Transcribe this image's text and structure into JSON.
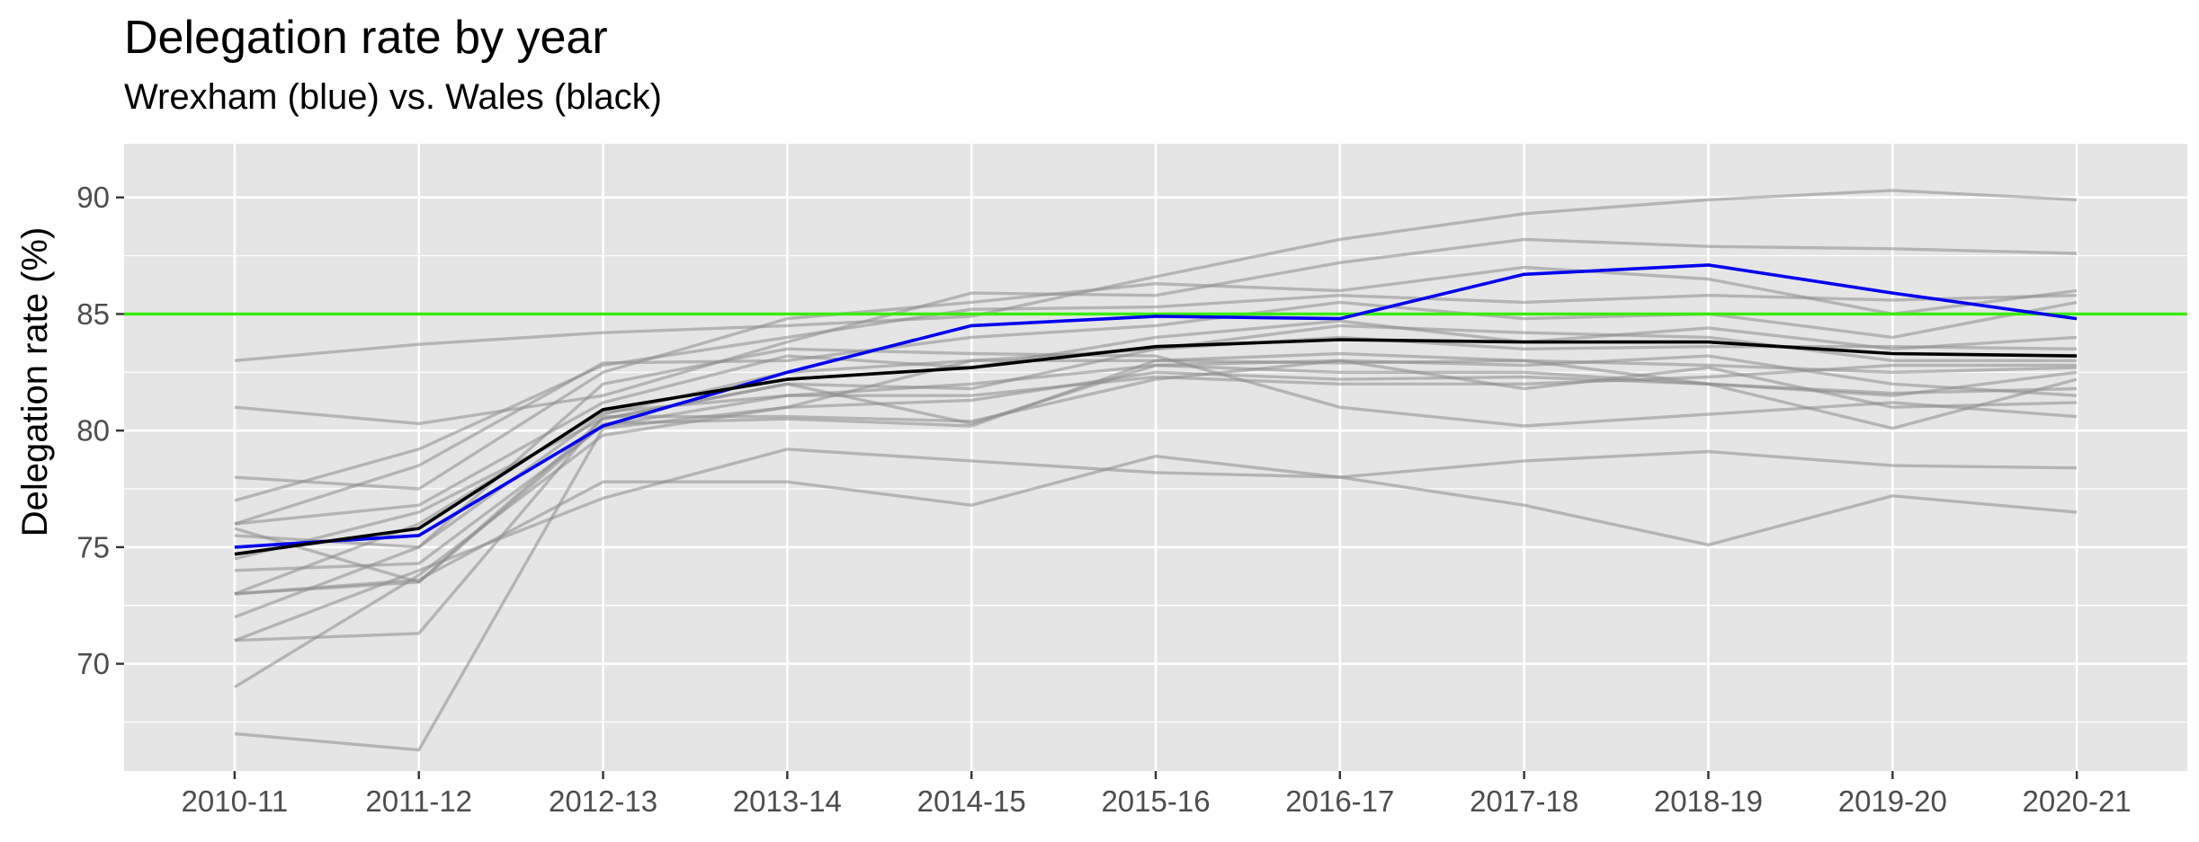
{
  "chart_data": {
    "type": "line",
    "title": "Delegation rate by year",
    "subtitle": "Wrexham (blue) vs. Wales (black)",
    "xlabel": "",
    "ylabel": "Delegation rate (%)",
    "categories": [
      "2010-11",
      "2011-12",
      "2012-13",
      "2013-14",
      "2014-15",
      "2015-16",
      "2016-17",
      "2017-18",
      "2018-19",
      "2019-20",
      "2020-21"
    ],
    "ylim": [
      65.4,
      92.3
    ],
    "yticks": [
      70,
      75,
      80,
      85,
      90
    ],
    "grid": true,
    "reference_line": {
      "y": 85,
      "color": "#33ee00"
    },
    "colors": {
      "panel": "#e5e5e5",
      "grid": "#ffffff",
      "others": "#8c8c8c",
      "wrexham": "#0000ee",
      "wales": "#000000"
    },
    "series": [
      {
        "values": [
          83.0,
          83.7,
          84.2,
          84.5,
          84.9,
          86.6,
          88.2,
          89.3,
          89.9,
          90.3,
          89.9
        ]
      },
      {
        "values": [
          81.0,
          80.3,
          81.5,
          83.8,
          85.9,
          85.8,
          87.2,
          88.2,
          87.9,
          87.8,
          87.6
        ]
      },
      {
        "values": [
          78.0,
          77.5,
          82.5,
          84.8,
          85.5,
          86.3,
          86.0,
          87.0,
          86.5,
          85.0,
          86.0
        ]
      },
      {
        "values": [
          77.0,
          79.2,
          82.8,
          84.0,
          85.2,
          85.3,
          85.8,
          85.5,
          85.8,
          85.6,
          85.8
        ]
      },
      {
        "values": [
          76.0,
          78.5,
          82.9,
          83.0,
          84.0,
          84.5,
          85.5,
          84.8,
          85.0,
          84.0,
          85.5
        ]
      },
      {
        "values": [
          76.0,
          76.8,
          81.2,
          83.2,
          82.7,
          84.0,
          84.7,
          83.8,
          84.4,
          83.5,
          84.0
        ]
      },
      {
        "values": [
          75.5,
          75.0,
          80.7,
          82.5,
          83.0,
          83.5,
          84.0,
          83.5,
          83.6,
          83.6,
          83.5
        ]
      },
      {
        "values": [
          74.5,
          76.5,
          80.5,
          82.0,
          81.8,
          83.5,
          84.5,
          84.2,
          84.0,
          83.0,
          83.0
        ]
      },
      {
        "values": [
          74.0,
          74.3,
          80.2,
          81.5,
          81.5,
          82.3,
          82.0,
          82.0,
          82.3,
          82.8,
          82.8
        ]
      },
      {
        "values": [
          73.0,
          73.5,
          80.3,
          80.5,
          80.2,
          83.0,
          83.3,
          83.0,
          82.0,
          81.5,
          82.5
        ]
      },
      {
        "values": [
          73.0,
          76.0,
          80.8,
          81.5,
          82.0,
          82.8,
          82.5,
          82.5,
          82.0,
          80.1,
          82.2
        ]
      },
      {
        "values": [
          72.0,
          75.0,
          82.0,
          83.5,
          83.3,
          83.2,
          81.0,
          80.2,
          80.7,
          81.2,
          80.6
        ]
      },
      {
        "values": [
          71.0,
          71.3,
          80.6,
          80.6,
          80.4,
          82.2,
          83.0,
          81.8,
          82.7,
          81.0,
          81.2
        ]
      },
      {
        "values": [
          69.0,
          73.8,
          79.8,
          81.0,
          81.3,
          82.5,
          82.2,
          82.3,
          82.0,
          81.6,
          81.8
        ]
      },
      {
        "values": [
          75.8,
          73.5,
          80.5,
          82.0,
          80.3,
          82.8,
          83.0,
          82.8,
          83.2,
          82.0,
          81.5
        ]
      },
      {
        "values": [
          71.0,
          74.0,
          77.1,
          79.2,
          78.7,
          78.2,
          78.0,
          78.7,
          79.1,
          78.5,
          78.4
        ]
      },
      {
        "values": [
          73.0,
          73.6,
          77.8,
          77.8,
          76.8,
          78.9,
          78.0,
          76.8,
          75.1,
          77.2,
          76.5
        ]
      },
      {
        "values": [
          67.0,
          66.3,
          80.1,
          81.0,
          83.0,
          83.0,
          82.9,
          83.0,
          82.8,
          82.5,
          82.7
        ]
      },
      {
        "name": "Wrexham",
        "values": [
          75.0,
          75.5,
          80.2,
          82.5,
          84.5,
          84.9,
          84.8,
          86.7,
          87.1,
          85.9,
          84.8
        ]
      },
      {
        "name": "Wales",
        "values": [
          74.7,
          75.8,
          80.9,
          82.2,
          82.7,
          83.6,
          83.9,
          83.8,
          83.8,
          83.3,
          83.2
        ]
      }
    ]
  }
}
